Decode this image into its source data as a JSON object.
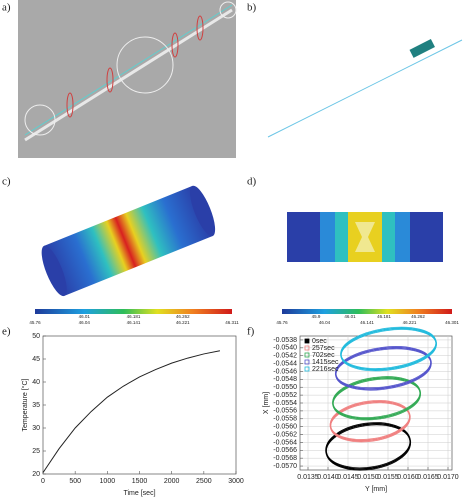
{
  "panel_labels": [
    "a)",
    "b)",
    "c)",
    "d)",
    "e)",
    "f)"
  ],
  "colorbars": [
    {
      "labels_top": [
        "46.01",
        "46.181",
        "46.262"
      ],
      "labels_bottom": [
        "45.76",
        "46.04",
        "46.141",
        "46.221",
        "46.311"
      ]
    },
    {
      "labels_top": [
        "45.9",
        "46.01",
        "46.181",
        "46.262"
      ],
      "labels_bottom": [
        "45.76",
        "46.04",
        "46.141",
        "46.221",
        "46.301"
      ]
    }
  ],
  "chart_data": [
    {
      "type": "line",
      "xlabel": "Time [sec]",
      "ylabel": "Temperature [°C]",
      "x": [
        0,
        250,
        500,
        750,
        1000,
        1250,
        1500,
        1750,
        2000,
        2250,
        2500,
        2750
      ],
      "series": [
        {
          "color": "#222222",
          "values": [
            20.3,
            25.5,
            30.0,
            33.6,
            36.7,
            39.1,
            41.1,
            42.7,
            44.1,
            45.2,
            46.1,
            46.8
          ]
        }
      ],
      "xlim": [
        0,
        3000
      ],
      "xticks": [
        0,
        500,
        1000,
        1500,
        2000,
        2500,
        3000
      ],
      "ylim": [
        20,
        50
      ],
      "yticks": [
        20,
        25,
        30,
        35,
        40,
        45,
        50
      ],
      "grid": false
    },
    {
      "type": "ring",
      "xlabel": "Y [mm]",
      "ylabel": "X [mm]",
      "series": [
        {
          "name": "0sec",
          "color": "#000000",
          "cx": 0.015,
          "cy": -0.05647,
          "rx": 0.00106,
          "ry": 0.00056
        },
        {
          "name": "257sec",
          "color": "#f08080",
          "cx": 0.01505,
          "cy": -0.05583,
          "rx": 0.001,
          "ry": 0.00048
        },
        {
          "name": "702sec",
          "color": "#33aa55",
          "cx": 0.01521,
          "cy": -0.05525,
          "rx": 0.0011,
          "ry": 0.0005
        },
        {
          "name": "1415sec",
          "color": "#5555cc",
          "cx": 0.01538,
          "cy": -0.05449,
          "rx": 0.0012,
          "ry": 0.0005
        },
        {
          "name": "2216sec",
          "color": "#22bbdd",
          "cx": 0.01551,
          "cy": -0.054,
          "rx": 0.0012,
          "ry": 0.0005
        }
      ],
      "xlim": [
        0.0133,
        0.0171
      ],
      "xticks": [
        0.0135,
        {
          "value": 0.014,
          "label": "0.0140"
        },
        0.0145,
        {
          "value": 0.015,
          "label": "0.0150"
        },
        0.0155,
        {
          "value": 0.016,
          "label": "0.0160"
        },
        0.0165,
        {
          "value": 0.017,
          "label": "0.0170"
        }
      ],
      "ylim": [
        -0.0571,
        -0.0537
      ],
      "yticks": [
        -0.0538,
        {
          "value": -0.054,
          "label": "-0.0540"
        },
        -0.0542,
        -0.0544,
        -0.0546,
        -0.0548,
        {
          "value": -0.055,
          "label": "-0.0550"
        },
        -0.0552,
        -0.0554,
        -0.0556,
        -0.0558,
        {
          "value": -0.056,
          "label": "-0.0560"
        },
        -0.0562,
        -0.0564,
        -0.0566,
        -0.0568,
        {
          "value": -0.057,
          "label": "-0.0570"
        }
      ],
      "grid": true,
      "legend": "upper-left"
    }
  ]
}
